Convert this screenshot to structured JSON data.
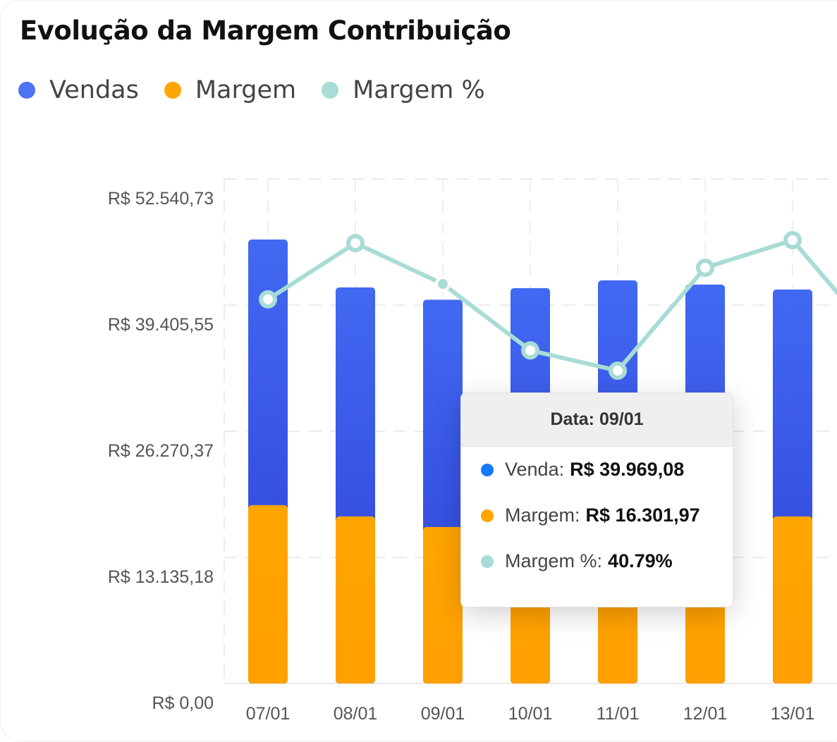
{
  "chart_data": {
    "type": "bar",
    "title": "Evolução da Margem Contribuição",
    "categories": [
      "07/01",
      "08/01",
      "09/01",
      "10/01",
      "11/01",
      "12/01",
      "13/01"
    ],
    "series": [
      {
        "name": "Vendas",
        "type": "bar",
        "color": "#3d63f0",
        "values": [
          46240,
          41250,
          39969.08,
          41180,
          41985,
          41544,
          41030
        ]
      },
      {
        "name": "Margem",
        "type": "bar",
        "color": "#ffa500",
        "values": [
          18570,
          17400,
          16301.97,
          15850,
          15870,
          17180,
          17400
        ]
      },
      {
        "name": "Margem %",
        "type": "line",
        "color": "#a8dcd6",
        "values": [
          40.26,
          42.2,
          40.79,
          38.5,
          37.8,
          41.35,
          42.3
        ]
      }
    ],
    "y_ticks": [
      "R$ 0,00",
      "R$ 13.135,18",
      "R$ 26.270,37",
      "R$ 39.405,55",
      "R$ 52.540,73"
    ],
    "ylim": [
      0,
      52540.73
    ],
    "grid": true,
    "legend_position": "top-left",
    "tooltip": {
      "header": "Data: 09/01",
      "rows": [
        {
          "label": "Venda:",
          "value": "R$ 39.969,08",
          "color": "#1677ff"
        },
        {
          "label": "Margem:",
          "value": "R$ 16.301,97",
          "color": "#ffa500"
        },
        {
          "label": "Margem %:",
          "value": "40.79%",
          "color": "#a8dcd6"
        }
      ]
    }
  }
}
